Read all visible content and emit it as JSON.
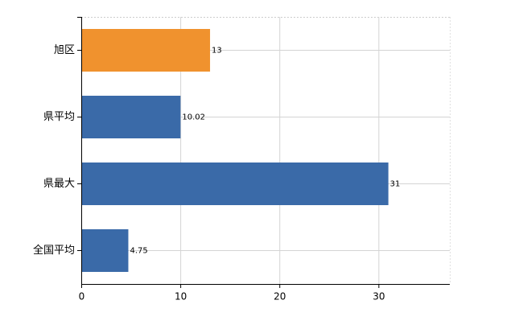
{
  "chart_data": {
    "type": "barh",
    "categories": [
      "旭区",
      "県平均",
      "県最大",
      "全国平均"
    ],
    "values": [
      13,
      10.02,
      31,
      4.75
    ],
    "colors": [
      "#f0922e",
      "#3a6aa8",
      "#3a6aa8",
      "#3a6aa8"
    ],
    "xlim": [
      0,
      37.2
    ],
    "xticks": [
      0,
      10,
      20,
      30
    ],
    "grid": true
  }
}
